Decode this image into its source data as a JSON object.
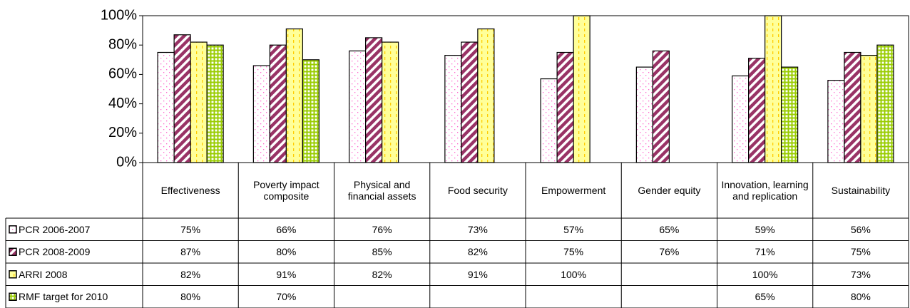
{
  "chart_data": {
    "type": "bar",
    "categories": [
      "Effectiveness",
      "Poverty impact composite",
      "Physical and financial assets",
      "Food security",
      "Empowerment",
      "Gender equity",
      "Innovation, learning and replication",
      "Sustainability"
    ],
    "series": [
      {
        "name": "PCR 2006-2007",
        "color": "#ff66cc",
        "values": [
          75,
          66,
          76,
          73,
          57,
          65,
          59,
          56
        ],
        "value_labels": [
          "75%",
          "66%",
          "76%",
          "73%",
          "57%",
          "65%",
          "59%",
          "56%"
        ]
      },
      {
        "name": "PCR 2008-2009",
        "color": "#993366",
        "values": [
          87,
          80,
          85,
          82,
          75,
          76,
          71,
          75
        ],
        "value_labels": [
          "87%",
          "80%",
          "85%",
          "82%",
          "75%",
          "76%",
          "71%",
          "75%"
        ]
      },
      {
        "name": "ARRI 2008",
        "color": "#ffcc00",
        "values": [
          82,
          91,
          82,
          91,
          100,
          null,
          100,
          73
        ],
        "value_labels": [
          "82%",
          "91%",
          "82%",
          "91%",
          "100%",
          null,
          "100%",
          "73%"
        ]
      },
      {
        "name": "RMF target for 2010",
        "color": "#99cc00",
        "values": [
          80,
          70,
          null,
          null,
          null,
          null,
          65,
          80
        ],
        "value_labels": [
          "80%",
          "70%",
          null,
          null,
          null,
          null,
          "65%",
          "80%"
        ]
      }
    ],
    "ylim": [
      0,
      100
    ],
    "yticks": [
      {
        "value": 0,
        "label": "0%"
      },
      {
        "value": 20,
        "label": "20%"
      },
      {
        "value": 40,
        "label": "40%"
      },
      {
        "value": 60,
        "label": "60%"
      },
      {
        "value": 80,
        "label": "80%"
      },
      {
        "value": 100,
        "label": "100%"
      }
    ],
    "grid": false
  }
}
